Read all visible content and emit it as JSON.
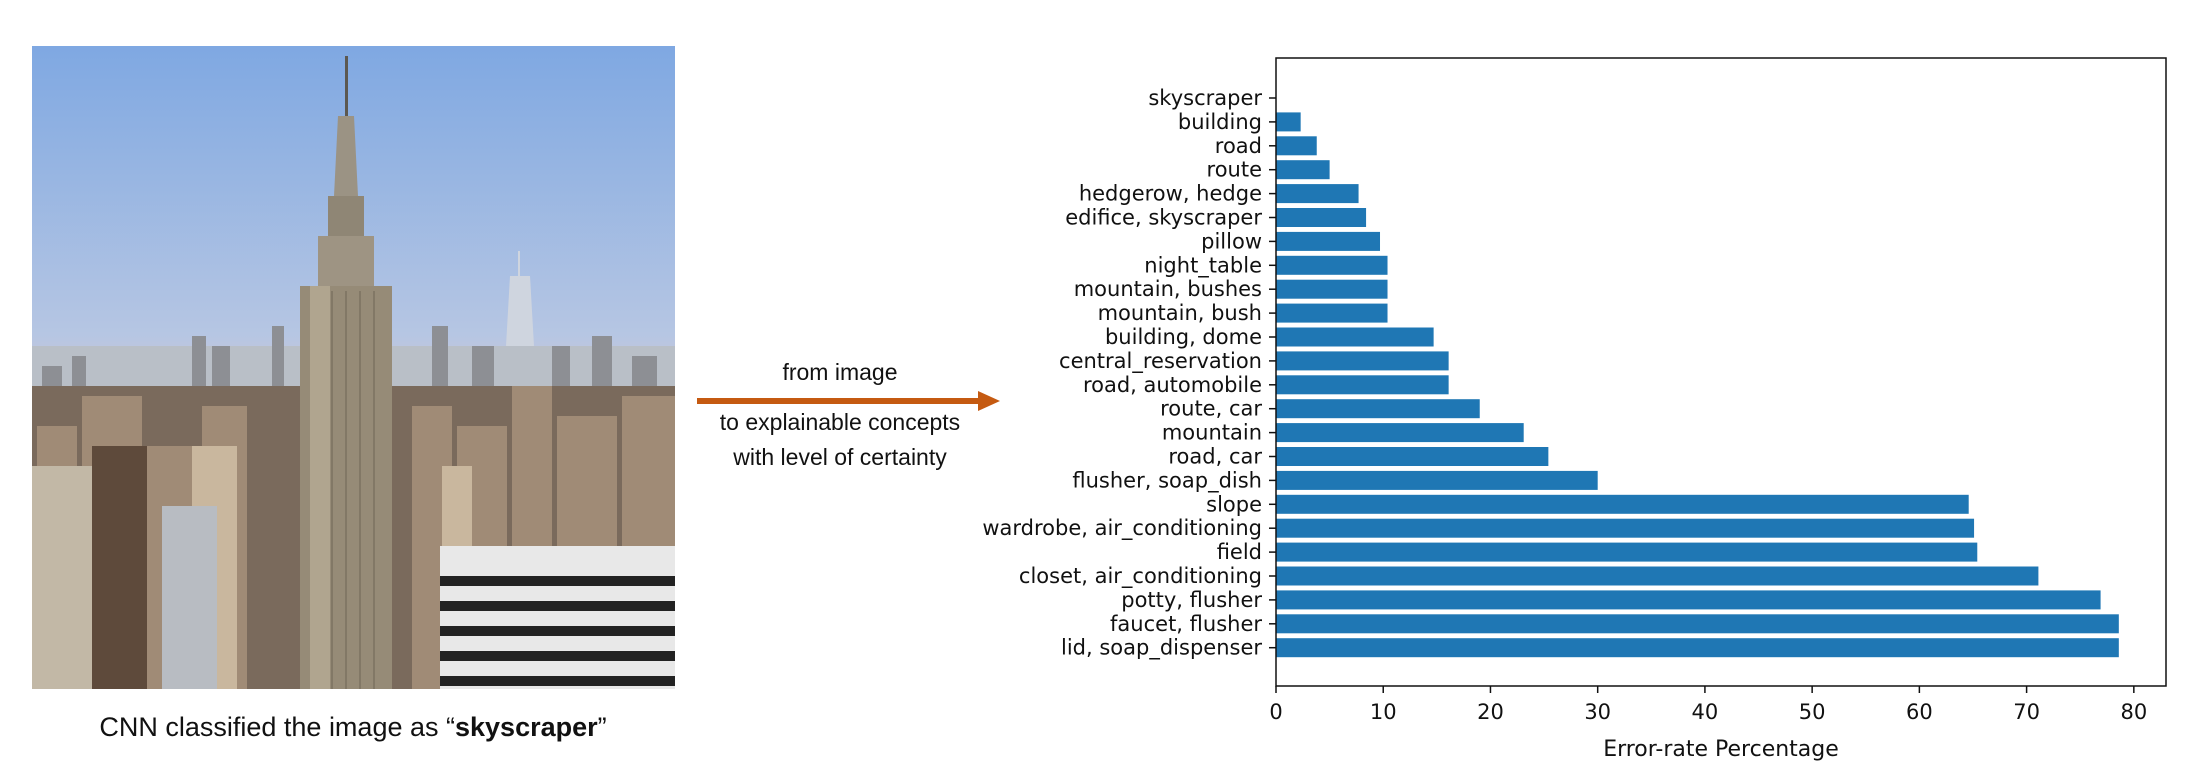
{
  "photo": {
    "icon": "skyscraper-cityscape-photo"
  },
  "caption": {
    "prefix": "CNN classified the image as “",
    "bold": "skyscraper",
    "suffix": "”"
  },
  "arrow": {
    "label_top": "from image",
    "label_bottom_1": "to explainable concepts",
    "label_bottom_2": "with level of certainty",
    "color": "#c55a11"
  },
  "chart_data": {
    "type": "bar",
    "orientation": "horizontal",
    "categories": [
      "skyscraper",
      "building",
      "road",
      "route",
      "hedgerow, hedge",
      "edifice, skyscraper",
      "pillow",
      "night_table",
      "mountain, bushes",
      "mountain, bush",
      "building, dome",
      "central_reservation",
      "road, automobile",
      "route, car",
      "mountain",
      "road, car",
      "flusher, soap_dish",
      "slope",
      "wardrobe, air_conditioning",
      "field",
      "closet, air_conditioning",
      "potty, flusher",
      "faucet, flusher",
      "lid, soap_dispenser"
    ],
    "values": [
      0,
      2.3,
      3.8,
      5.0,
      7.7,
      8.4,
      9.7,
      10.4,
      10.4,
      10.4,
      14.7,
      16.1,
      16.1,
      19.0,
      23.1,
      25.4,
      30.0,
      64.6,
      65.1,
      65.4,
      71.1,
      76.9,
      78.6,
      78.6
    ],
    "xlabel": "Error-rate Percentage",
    "ylabel": "",
    "xticks": [
      0,
      10,
      20,
      30,
      40,
      50,
      60,
      70,
      80
    ],
    "xlim": [
      0,
      83
    ],
    "grid": false,
    "bar_color": "#1f77b4"
  }
}
